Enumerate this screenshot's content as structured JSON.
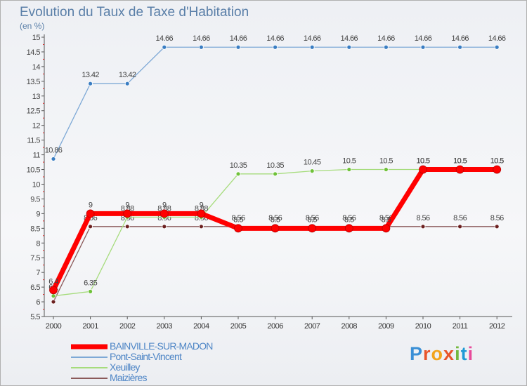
{
  "title": "Evolution du Taux de Taxe d'Habitation",
  "subtitle": "(en %)",
  "logo": {
    "text": "Proxiti",
    "letter_colors": [
      "#3a8fd6",
      "#e8542a",
      "#f2a31b",
      "#e8542a",
      "#74b83f",
      "#1e9ad6",
      "#e84a9b"
    ]
  },
  "chart_data": {
    "type": "line",
    "title": "Evolution du Taux de Taxe d'Habitation",
    "ylabel": "(en %)",
    "xlabel": "",
    "x": [
      2000,
      2001,
      2002,
      2003,
      2004,
      2005,
      2006,
      2007,
      2008,
      2009,
      2010,
      2011,
      2012
    ],
    "ylim": [
      5.5,
      15
    ],
    "ytick_step": 0.5,
    "grid": false,
    "legend_position": "bottom-left",
    "series": [
      {
        "name": "BAINVILLE-SUR-MADON",
        "color": "#ff0000",
        "marker_color": "#ff0000",
        "line_width": 7,
        "values": [
          6.4,
          9,
          9,
          9,
          9,
          8.5,
          8.5,
          8.5,
          8.5,
          8.5,
          10.5,
          10.5,
          10.5
        ],
        "labels": [
          "6.4",
          "9",
          "9",
          "9",
          "9",
          "8.5",
          "8.5",
          "8.5",
          "8.5",
          "8.5",
          "10.5",
          "10.5",
          "10.5"
        ]
      },
      {
        "name": "Pont-Saint-Vincent",
        "color": "#7ea9d6",
        "marker_color": "#3a7dc2",
        "line_width": 1.3,
        "values": [
          10.86,
          13.42,
          13.42,
          14.66,
          14.66,
          14.66,
          14.66,
          14.66,
          14.66,
          14.66,
          14.66,
          14.66,
          14.66
        ],
        "labels": [
          "10.86",
          "13.42",
          "13.42",
          "14.66",
          "14.66",
          "14.66",
          "14.66",
          "14.66",
          "14.66",
          "14.66",
          "14.66",
          "14.66",
          "14.66"
        ]
      },
      {
        "name": "Xeuilley",
        "color": "#a6dc7c",
        "marker_color": "#6fc13a",
        "line_width": 1.3,
        "values": [
          6.2,
          6.35,
          8.88,
          8.88,
          8.88,
          10.35,
          10.35,
          10.45,
          10.5,
          10.5,
          10.5,
          10.5,
          10.5
        ],
        "labels": [
          "6.2",
          "6.35",
          "8.88",
          "8.88",
          "8.88",
          "10.35",
          "10.35",
          "10.45",
          "10.5",
          "10.5",
          "10.5",
          "10.5",
          "10.5"
        ]
      },
      {
        "name": "Maizières",
        "color": "#8b5a5a",
        "marker_color": "#6b2020",
        "line_width": 1.3,
        "values": [
          6,
          8.56,
          8.56,
          8.56,
          8.56,
          8.56,
          8.56,
          8.56,
          8.56,
          8.56,
          8.56,
          8.56,
          8.56
        ],
        "labels": [
          "6",
          "8.56",
          "8.56",
          "8.56",
          "8.56",
          "8.56",
          "8.56",
          "8.56",
          "8.56",
          "8.56",
          "8.56",
          "8.56",
          "8.56"
        ]
      }
    ]
  }
}
